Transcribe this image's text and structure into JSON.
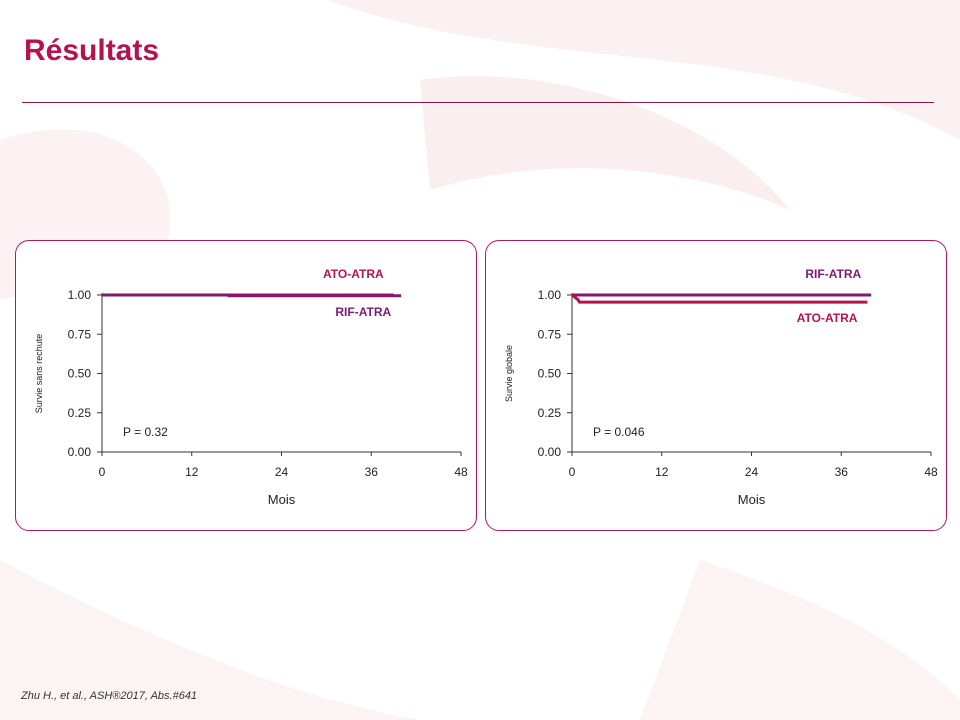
{
  "slide": {
    "title": "Résultats",
    "citation": "Zhu H., et al., ASH®2017, Abs.#641"
  },
  "colors": {
    "title": "#b5134f",
    "ato_atra": "#b5134f",
    "rif_atra": "#7d1a78",
    "panel_border": "#b01a5a",
    "background_decor": "#fbeef1"
  },
  "chart_data": [
    {
      "type": "line",
      "step": true,
      "title": "",
      "xlabel": "Mois",
      "ylabel": "Survie sans rechute",
      "xlim": [
        0,
        48
      ],
      "ylim": [
        0,
        1
      ],
      "xticks": [
        "0",
        "12",
        "24",
        "36",
        "48"
      ],
      "yticks": [
        "0.00",
        "0.25",
        "0.50",
        "0.75",
        "1.00"
      ],
      "xtick_values": [
        0,
        12,
        24,
        36,
        48
      ],
      "ytick_values": [
        0,
        0.25,
        0.5,
        0.75,
        1.0
      ],
      "annotation": "P = 0.32",
      "grid": false,
      "series": [
        {
          "name": "ATO-ATRA",
          "color": "#b5134f",
          "x": [
            0,
            39
          ],
          "y": [
            1.0,
            1.0
          ],
          "label_pos": "above"
        },
        {
          "name": "RIF-ATRA",
          "color": "#7d1a78",
          "x": [
            0,
            17,
            17,
            40
          ],
          "y": [
            1.0,
            1.0,
            0.995,
            0.995
          ],
          "label_pos": "below"
        }
      ]
    },
    {
      "type": "line",
      "step": true,
      "title": "",
      "xlabel": "Mois",
      "ylabel": "Survie globale",
      "xlim": [
        0,
        48
      ],
      "ylim": [
        0,
        1
      ],
      "xticks": [
        "0",
        "12",
        "24",
        "36",
        "48"
      ],
      "yticks": [
        "0.00",
        "0.25",
        "0.50",
        "0.75",
        "1.00"
      ],
      "xtick_values": [
        0,
        12,
        24,
        36,
        48
      ],
      "ytick_values": [
        0,
        0.25,
        0.5,
        0.75,
        1.0
      ],
      "annotation": "P = 0.046",
      "grid": false,
      "series": [
        {
          "name": "RIF-ATRA",
          "color": "#7d1a78",
          "x": [
            0,
            40
          ],
          "y": [
            1.0,
            1.0
          ],
          "label_pos": "above"
        },
        {
          "name": "ATO-ATRA",
          "color": "#b5134f",
          "x": [
            0,
            0.8,
            1,
            39.5
          ],
          "y": [
            1.0,
            0.97,
            0.955,
            0.955
          ],
          "label_pos": "below"
        }
      ]
    }
  ]
}
